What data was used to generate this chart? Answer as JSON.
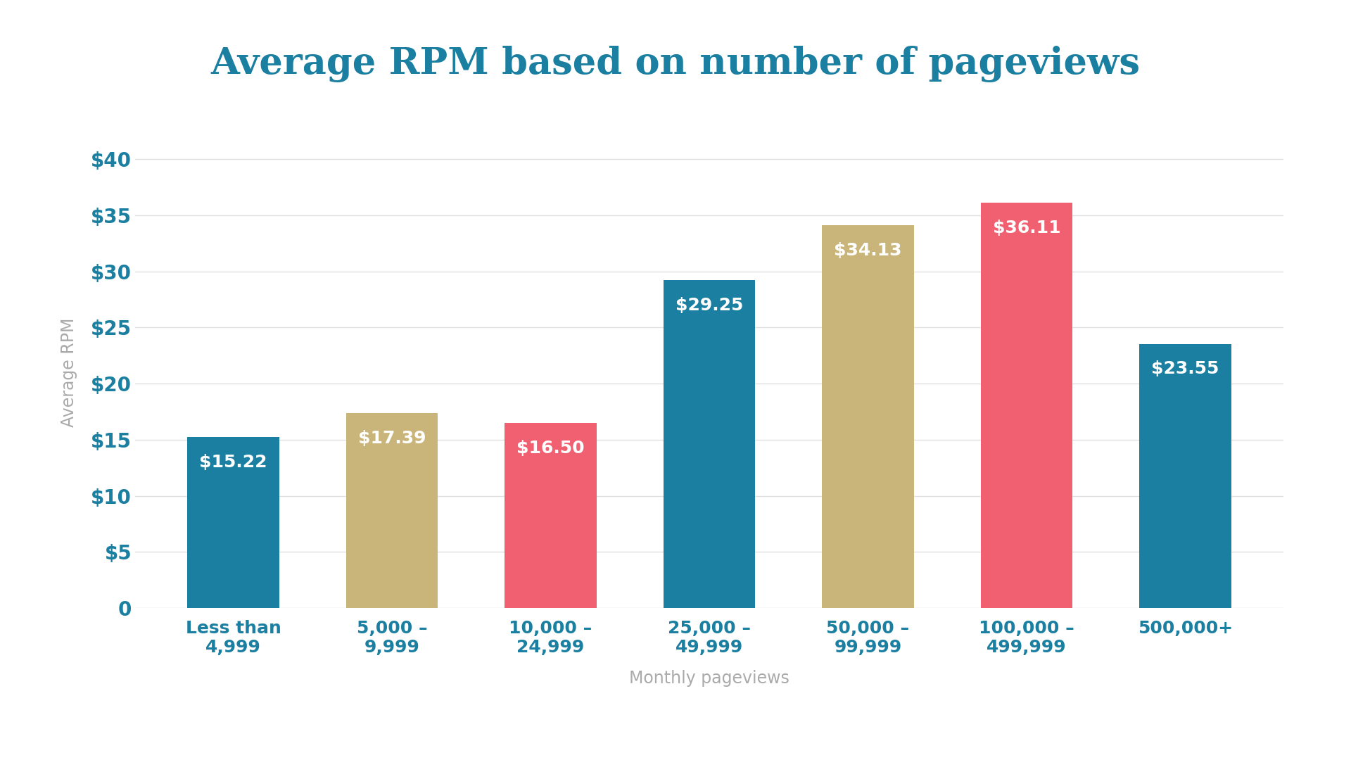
{
  "title": "Average RPM based on number of pageviews",
  "xlabel": "Monthly pageviews",
  "ylabel": "Average RPM",
  "categories": [
    "Less than\n4,999",
    "5,000 –\n9,999",
    "10,000 –\n24,999",
    "25,000 –\n49,999",
    "50,000 –\n99,999",
    "100,000 –\n499,999",
    "500,000+"
  ],
  "values": [
    15.22,
    17.39,
    16.5,
    29.25,
    34.13,
    36.11,
    23.55
  ],
  "bar_colors": [
    "#1a7fa0",
    "#c9b47a",
    "#f06070",
    "#1a7fa0",
    "#c9b47a",
    "#f06070",
    "#1a7fa0"
  ],
  "bar_labels": [
    "$15.22",
    "$17.39",
    "$16.50",
    "$29.25",
    "$34.13",
    "$36.11",
    "$23.55"
  ],
  "ylim": [
    0,
    42
  ],
  "yticks": [
    0,
    5,
    10,
    15,
    20,
    25,
    30,
    35,
    40
  ],
  "ytick_labels": [
    "0",
    "$5",
    "$10",
    "$15",
    "$20",
    "$25",
    "$30",
    "$35",
    "$40"
  ],
  "title_color": "#1a7fa0",
  "xtick_label_color": "#1a7fa0",
  "ytick_label_color": "#1a7fa0",
  "axis_label_color": "#aaaaaa",
  "bar_label_color": "#ffffff",
  "background_color": "#ffffff",
  "grid_color": "#e0e0e0",
  "title_fontsize": 38,
  "axis_label_fontsize": 17,
  "xtick_label_fontsize": 18,
  "ytick_label_fontsize": 20,
  "bar_label_fontsize": 18,
  "bar_width": 0.58
}
